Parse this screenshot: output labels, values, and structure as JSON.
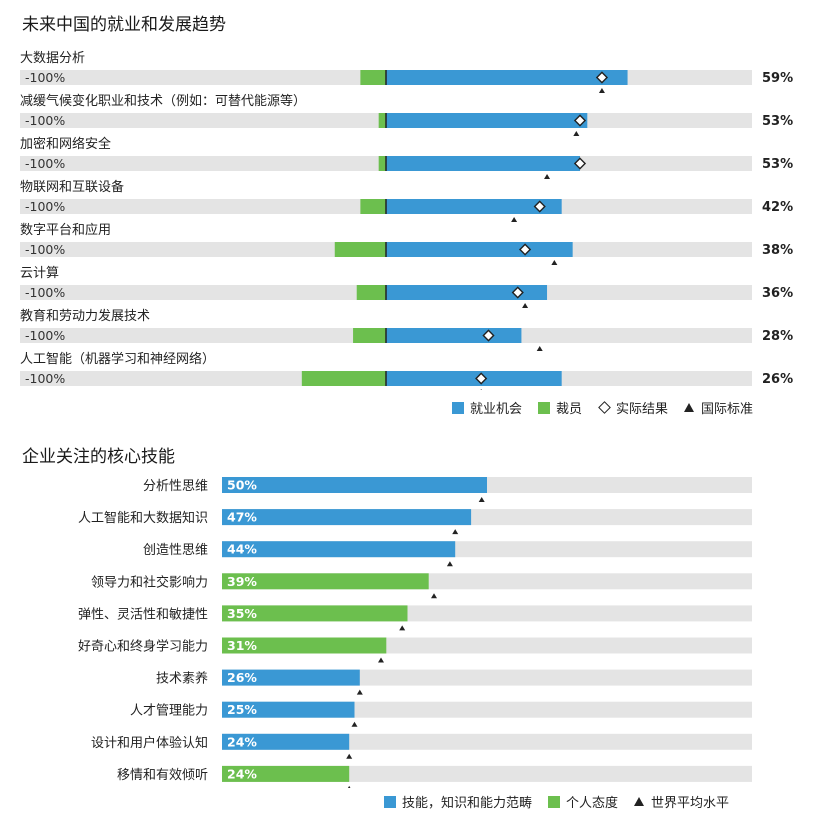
{
  "colors": {
    "job": "#3a98d4",
    "layoff": "#6cbf4e",
    "track": "#e4e4e4"
  },
  "chart_data": [
    {
      "type": "bar",
      "title": "未来中国的就业和发展趋势",
      "axis_min_label": "-100%",
      "xlim": [
        -100,
        100
      ],
      "categories": [
        "大数据分析",
        "减缓气候变化职业和技术（例如：可替代能源等）",
        "加密和网络安全",
        "物联网和互联设备",
        "数字平台和应用",
        "云计算",
        "教育和劳动力发展技术",
        "人工智能（机器学习和神经网络）"
      ],
      "series": [
        {
          "name": "就业机会",
          "values": [
            66,
            55,
            53,
            48,
            51,
            44,
            37,
            48
          ]
        },
        {
          "name": "裁员",
          "values": [
            -7,
            -2,
            -2,
            -7,
            -14,
            -8,
            -9,
            -23
          ]
        },
        {
          "name": "实际结果",
          "values": [
            59,
            53,
            53,
            42,
            38,
            36,
            28,
            26
          ]
        },
        {
          "name": "国际标准",
          "values": [
            59,
            52,
            44,
            35,
            46,
            38,
            42,
            26
          ]
        }
      ],
      "value_labels": [
        "59%",
        "53%",
        "53%",
        "42%",
        "38%",
        "36%",
        "28%",
        "26%"
      ],
      "legend": [
        "就业机会",
        "裁员",
        "实际结果",
        "国际标准"
      ]
    },
    {
      "type": "bar",
      "title": "企业关注的核心技能",
      "xlim": [
        0,
        100
      ],
      "categories": [
        "分析性思维",
        "人工智能和大数据知识",
        "创造性思维",
        "领导力和社交影响力",
        "弹性、灵活性和敏捷性",
        "好奇心和终身学习能力",
        "技术素养",
        "人才管理能力",
        "设计和用户体验认知",
        "移情和有效倾听"
      ],
      "values": [
        50,
        47,
        44,
        39,
        35,
        31,
        26,
        25,
        24,
        24
      ],
      "labels": [
        "50%",
        "47%",
        "44%",
        "39%",
        "35%",
        "31%",
        "26%",
        "25%",
        "24%",
        "24%"
      ],
      "groups": [
        "技能，知识和能力范畴",
        "技能，知识和能力范畴",
        "技能，知识和能力范畴",
        "个人态度",
        "个人态度",
        "个人态度",
        "技能，知识和能力范畴",
        "技能，知识和能力范畴",
        "技能，知识和能力范畴",
        "个人态度"
      ],
      "world_average": [
        49,
        44,
        43,
        40,
        34,
        30,
        26,
        25,
        24,
        24
      ],
      "legend": [
        "技能，知识和能力范畴",
        "个人态度",
        "世界平均水平"
      ]
    }
  ]
}
